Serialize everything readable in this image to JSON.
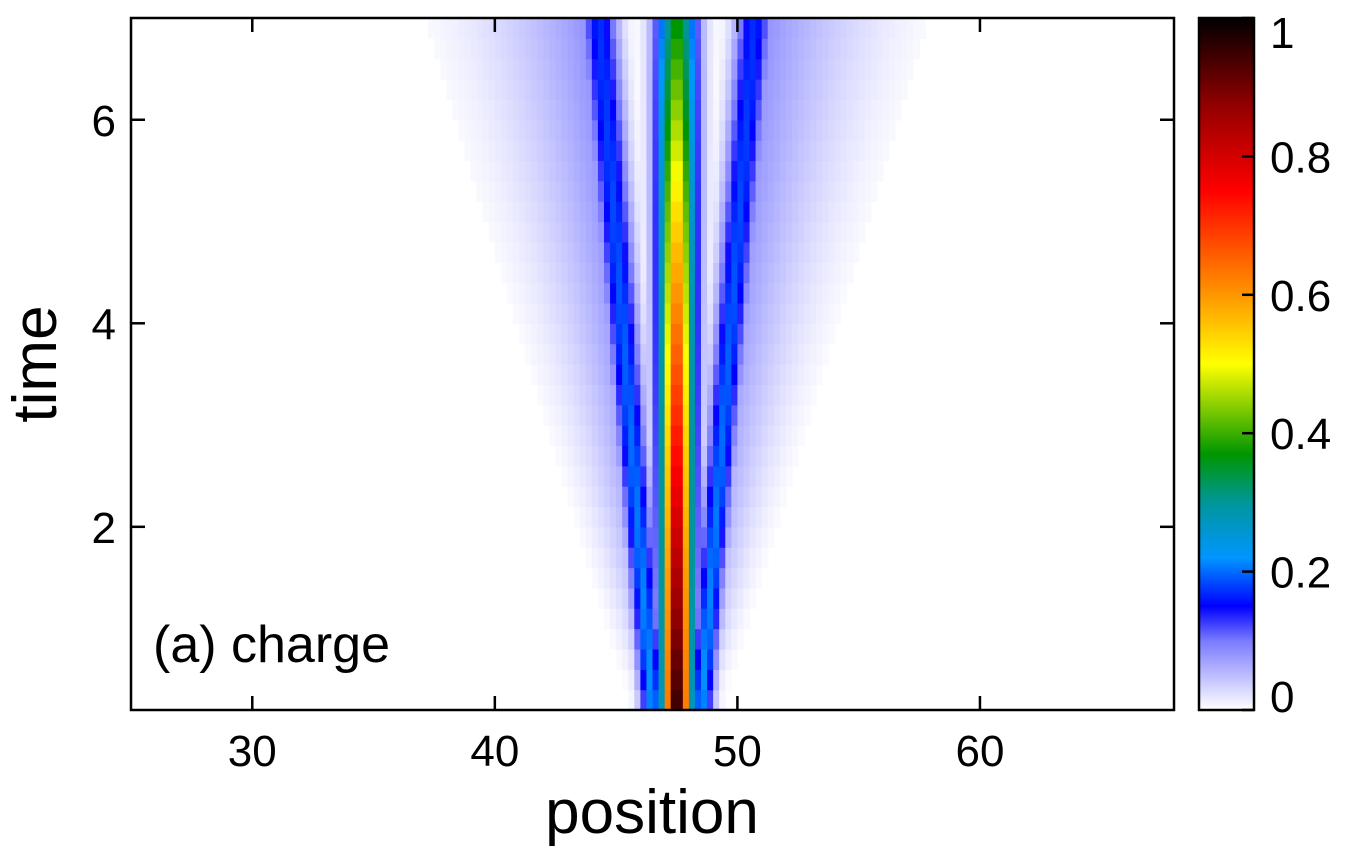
{
  "chart_data": {
    "type": "heatmap",
    "xlabel": "position",
    "ylabel": "time",
    "annotation": "(a) charge",
    "xlim": [
      25,
      68
    ],
    "ylim": [
      0.2,
      7
    ],
    "xticks": [
      30,
      40,
      50,
      60
    ],
    "yticks": [
      2,
      4,
      6
    ],
    "colorbar": {
      "range": [
        0,
        1
      ],
      "ticks": [
        0,
        0.2,
        0.4,
        0.6,
        0.8,
        1
      ],
      "tick_labels": [
        "0",
        "0.2",
        "0.4",
        "0.6",
        "0.8",
        "1"
      ]
    },
    "field": {
      "center_position": 47.5,
      "center_peak_start": 1.0,
      "center_peak_end": 0.37,
      "side_peak_offset_start": 1.0,
      "side_peak_offset_end": 3.2,
      "side_peak_start": 0.22,
      "side_peak_end": 0.17,
      "tail_extent_start": 2.0,
      "tail_extent_end": 12.0
    }
  }
}
